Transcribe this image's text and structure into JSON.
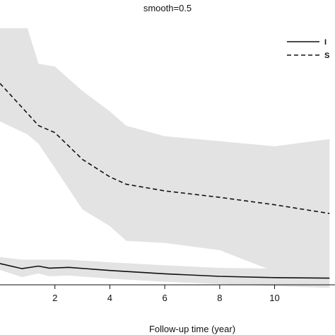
{
  "chart_data": {
    "type": "line",
    "title": "smooth=0.5",
    "xlabel": "Follow-up time (year)",
    "ylabel": "",
    "xlim": [
      0,
      12
    ],
    "ylim": [
      0,
      1
    ],
    "xticks": [
      2,
      4,
      6,
      8,
      10
    ],
    "tick_labels": [
      "2",
      "4",
      "6",
      "8",
      "10"
    ],
    "legend": {
      "position": "top-right",
      "entries": [
        "I",
        "S"
      ]
    },
    "grid": false,
    "series": [
      {
        "name": "I",
        "style": "solid",
        "color": "#111111",
        "x": [
          0,
          0.8,
          1.4,
          1.8,
          2.5,
          4,
          6,
          8,
          10,
          12
        ],
        "y": [
          0.083,
          0.063,
          0.073,
          0.065,
          0.068,
          0.056,
          0.043,
          0.033,
          0.028,
          0.026
        ],
        "band_upper": [
          0.108,
          0.098,
          0.098,
          0.098,
          0.098,
          0.088,
          0.076,
          0.066,
          0.063,
          0.063
        ],
        "band_lower": [
          0.058,
          0.03,
          0.045,
          0.033,
          0.036,
          0.024,
          0.012,
          0.003,
          -0.005,
          -0.012
        ]
      },
      {
        "name": "S",
        "style": "dashed",
        "color": "#111111",
        "x": [
          0,
          1.0,
          1.4,
          2.0,
          3.0,
          4.0,
          4.6,
          6.0,
          8.0,
          10.0,
          12.0
        ],
        "y": [
          0.785,
          0.668,
          0.621,
          0.593,
          0.489,
          0.421,
          0.392,
          0.366,
          0.341,
          0.312,
          0.278
        ],
        "band_upper": [
          1.0,
          1.0,
          0.862,
          0.851,
          0.756,
          0.676,
          0.62,
          0.579,
          0.56,
          0.54,
          0.568
        ],
        "band_lower": [
          0.637,
          0.586,
          0.55,
          0.455,
          0.294,
          0.229,
          0.171,
          0.163,
          0.135,
          0.052,
          0.0
        ]
      }
    ]
  }
}
